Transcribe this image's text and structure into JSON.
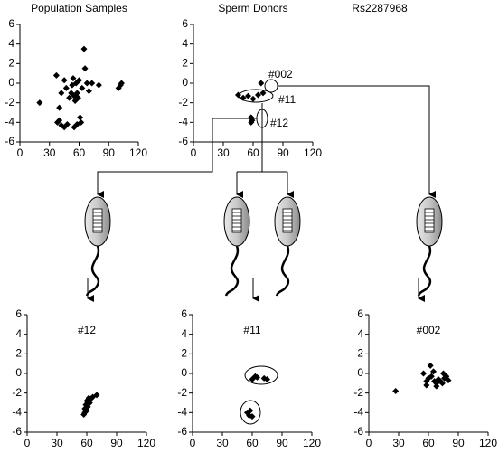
{
  "figure": {
    "label": "Rs2287968"
  },
  "chart_data": [
    {
      "type": "scatter",
      "title": "Population Samples",
      "color": "#000000",
      "x": [
        20,
        37,
        40,
        42,
        45,
        47,
        38,
        40,
        42,
        45,
        48,
        50,
        52,
        53,
        54,
        55,
        56,
        57,
        58,
        59,
        60,
        61,
        62,
        58,
        55,
        63,
        65,
        66,
        68,
        70,
        73,
        80,
        100,
        102,
        103
      ],
      "values": [
        -2,
        0.8,
        -2.5,
        -1,
        0.3,
        -0.5,
        -4,
        -3.8,
        -4.3,
        -4.5,
        -4.2,
        -1.5,
        -1,
        -0.2,
        0.5,
        -1.3,
        -1.8,
        0,
        -1,
        -1.5,
        0.3,
        -3.5,
        -4,
        -4.2,
        -4.5,
        -0.5,
        3.5,
        1.5,
        0,
        -0.8,
        0,
        -0.2,
        -0.5,
        -0.2,
        0
      ],
      "xlim": [
        0,
        120
      ],
      "xticks": [
        0,
        30,
        60,
        90,
        120
      ],
      "ylim": [
        -6,
        6
      ],
      "yticks": [
        -6,
        -4,
        -2,
        0,
        2,
        4,
        6
      ]
    },
    {
      "type": "scatter",
      "title": "Sperm Donors",
      "color": "#000000",
      "x": [
        68,
        45,
        50,
        55,
        60,
        65,
        70,
        58,
        59,
        58
      ],
      "values": [
        0,
        -1.2,
        -1.5,
        -1.3,
        -1.6,
        -1.2,
        -1,
        -3.5,
        -3.8,
        -4
      ],
      "annotations": [
        "#002",
        "#11",
        "#12"
      ],
      "xlim": [
        0,
        120
      ],
      "xticks": [
        0,
        30,
        60,
        90,
        120
      ],
      "ylim": [
        -6,
        6
      ],
      "yticks": [
        -6,
        -4,
        -2,
        0,
        2,
        4,
        6
      ]
    },
    {
      "type": "scatter",
      "title": "#12",
      "color": "#000000",
      "x": [
        58,
        58,
        59,
        60,
        60,
        61,
        62,
        63,
        64,
        66,
        70,
        57
      ],
      "values": [
        -4,
        -3.6,
        -3.2,
        -3.8,
        -2.8,
        -3.4,
        -2.5,
        -3,
        -2.6,
        -2.4,
        -2.2,
        -4.2
      ],
      "xlim": [
        0,
        120
      ],
      "xticks": [
        0,
        30,
        60,
        90,
        120
      ],
      "ylim": [
        -6,
        6
      ],
      "yticks": [
        -6,
        -4,
        -2,
        0,
        2,
        4,
        6
      ]
    },
    {
      "type": "scatter",
      "title": "#11",
      "color": "#000000",
      "x": [
        60,
        63,
        65,
        72,
        75,
        55,
        57,
        58,
        60
      ],
      "values": [
        -0.6,
        -0.3,
        -0.4,
        -0.5,
        -0.6,
        -4,
        -4.3,
        -3.8,
        -4.4
      ],
      "xlim": [
        0,
        120
      ],
      "xticks": [
        0,
        30,
        60,
        90,
        120
      ],
      "ylim": [
        -6,
        6
      ],
      "yticks": [
        -6,
        -4,
        -2,
        0,
        2,
        4,
        6
      ]
    },
    {
      "type": "scatter",
      "title": "#002",
      "color": "#000000",
      "x": [
        27,
        55,
        58,
        60,
        62,
        63,
        65,
        66,
        68,
        70,
        72,
        74,
        75,
        76,
        78,
        80,
        58,
        68
      ],
      "values": [
        -1.8,
        0,
        -0.8,
        -0.5,
        0.8,
        -0.3,
        0.2,
        -0.8,
        -1,
        -0.6,
        -0.8,
        -1,
        0,
        -0.5,
        -0.3,
        -0.7,
        -1.2,
        -1.3
      ],
      "xlim": [
        0,
        120
      ],
      "xticks": [
        0,
        30,
        60,
        90,
        120
      ],
      "ylim": [
        -6,
        6
      ],
      "yticks": [
        -6,
        -4,
        -2,
        0,
        2,
        4,
        6
      ]
    }
  ]
}
